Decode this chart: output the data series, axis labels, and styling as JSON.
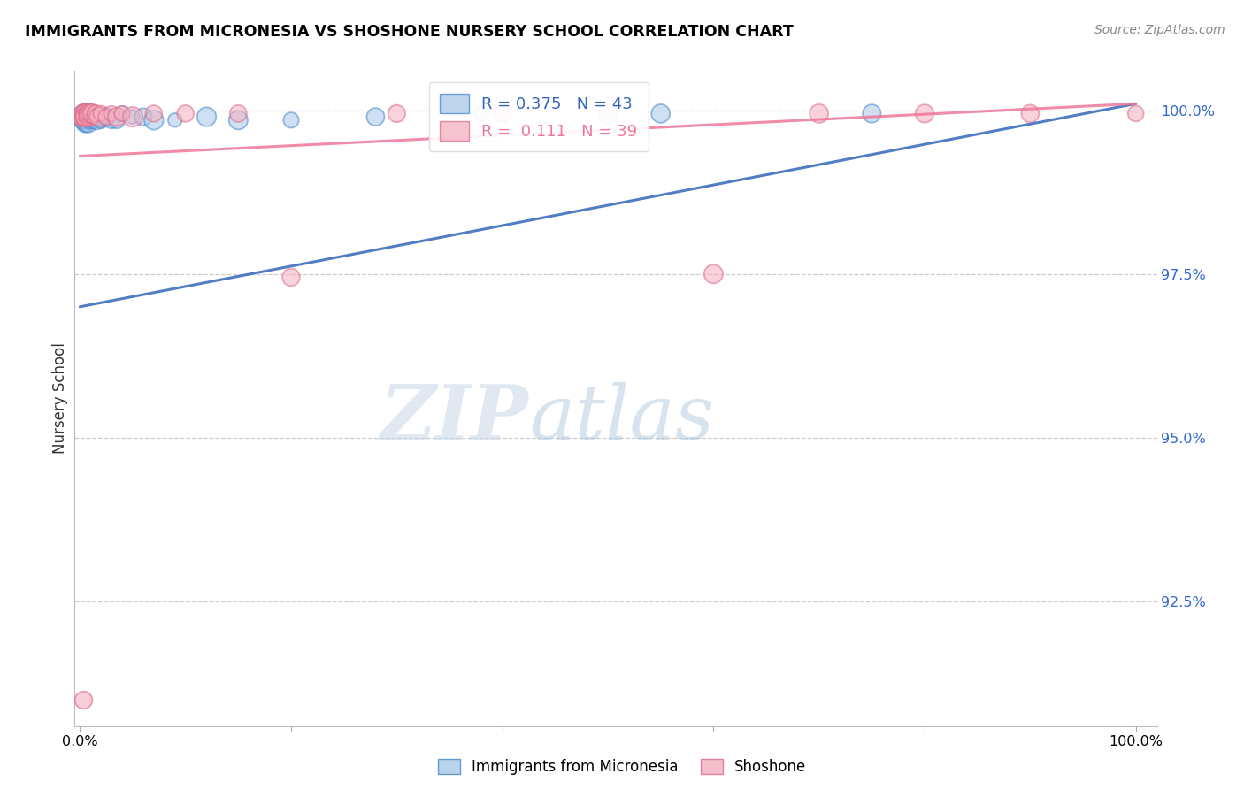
{
  "title": "IMMIGRANTS FROM MICRONESIA VS SHOSHONE NURSERY SCHOOL CORRELATION CHART",
  "source": "Source: ZipAtlas.com",
  "ylabel": "Nursery School",
  "legend_label1": "Immigrants from Micronesia",
  "legend_label2": "Shoshone",
  "R1": 0.375,
  "N1": 43,
  "R2": 0.111,
  "N2": 39,
  "ytick_labels": [
    "100.0%",
    "97.5%",
    "95.0%",
    "92.5%"
  ],
  "ytick_values": [
    1.0,
    0.975,
    0.95,
    0.925
  ],
  "xlim": [
    0.0,
    1.0
  ],
  "ylim": [
    0.906,
    1.006
  ],
  "color_blue": "#a8c8e8",
  "color_pink": "#f4b0c0",
  "edge_blue": "#4488cc",
  "edge_pink": "#e06888",
  "trendline_blue": "#3366bb",
  "trendline_pink": "#ee7799",
  "blue_x": [
    0.002,
    0.003,
    0.003,
    0.004,
    0.004,
    0.005,
    0.005,
    0.005,
    0.006,
    0.006,
    0.006,
    0.007,
    0.007,
    0.008,
    0.008,
    0.009,
    0.009,
    0.01,
    0.01,
    0.011,
    0.012,
    0.013,
    0.014,
    0.015,
    0.016,
    0.018,
    0.02,
    0.022,
    0.025,
    0.03,
    0.035,
    0.04,
    0.05,
    0.06,
    0.07,
    0.09,
    0.12,
    0.15,
    0.2,
    0.28,
    0.38,
    0.55,
    0.75
  ],
  "blue_y": [
    0.999,
    0.9985,
    0.9995,
    0.999,
    0.9985,
    0.9995,
    0.999,
    0.998,
    0.9995,
    0.999,
    0.998,
    0.9995,
    0.9985,
    0.999,
    0.998,
    0.9995,
    0.9985,
    0.9995,
    0.999,
    0.999,
    0.9985,
    0.999,
    0.9985,
    0.999,
    0.9985,
    0.999,
    0.9985,
    0.999,
    0.999,
    0.9985,
    0.9985,
    0.9995,
    0.999,
    0.999,
    0.9985,
    0.9985,
    0.999,
    0.9985,
    0.9985,
    0.999,
    0.9995,
    0.9995,
    0.9995
  ],
  "pink_x": [
    0.002,
    0.003,
    0.003,
    0.004,
    0.004,
    0.005,
    0.005,
    0.006,
    0.006,
    0.007,
    0.007,
    0.008,
    0.008,
    0.009,
    0.009,
    0.01,
    0.011,
    0.012,
    0.013,
    0.015,
    0.018,
    0.02,
    0.025,
    0.03,
    0.035,
    0.04,
    0.05,
    0.07,
    0.1,
    0.15,
    0.2,
    0.3,
    0.4,
    0.5,
    0.6,
    0.7,
    0.8,
    0.9,
    1.0
  ],
  "pink_y": [
    0.999,
    0.9995,
    0.999,
    0.9995,
    0.999,
    0.9995,
    0.999,
    0.9995,
    0.999,
    0.9995,
    0.999,
    0.9995,
    0.999,
    0.9995,
    0.999,
    0.9995,
    0.999,
    0.9995,
    0.999,
    0.9995,
    0.999,
    0.9995,
    0.999,
    0.9995,
    0.999,
    0.9995,
    0.999,
    0.9995,
    0.9995,
    0.9995,
    0.9745,
    0.9995,
    0.9995,
    0.9995,
    0.975,
    0.9995,
    0.9995,
    0.9995,
    0.9995
  ],
  "pink_outlier_x": [
    0.003
  ],
  "pink_outlier_y": [
    0.91
  ],
  "blue_trendline_y0": 0.97,
  "blue_trendline_y1": 1.001,
  "pink_trendline_y0": 0.993,
  "pink_trendline_y1": 1.001
}
